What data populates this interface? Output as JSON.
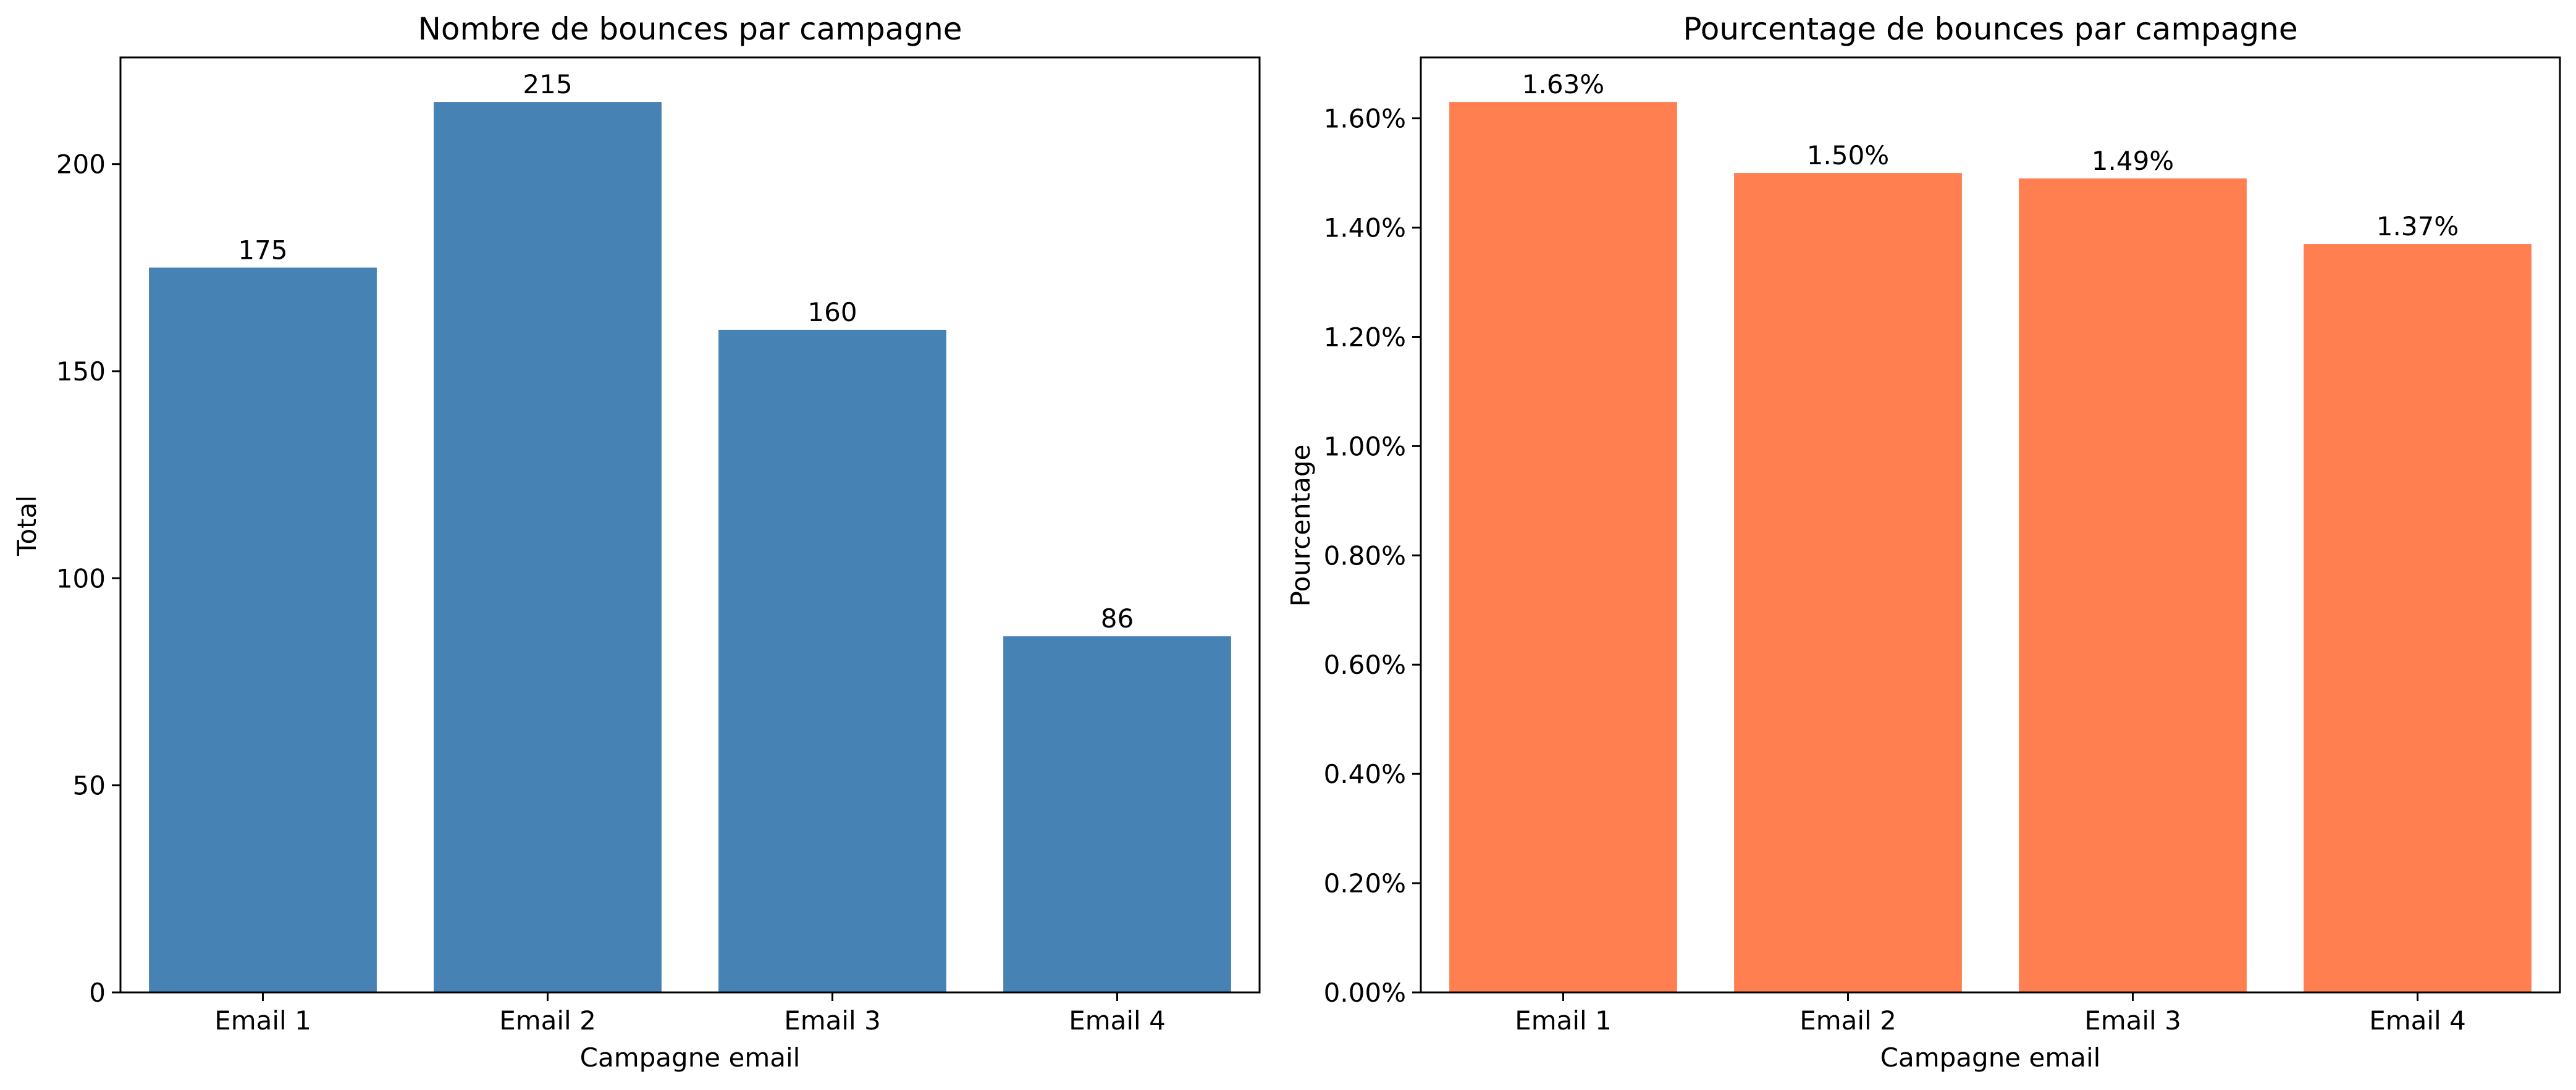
{
  "chart_data": [
    {
      "type": "bar",
      "title": "Nombre de bounces par campagne",
      "xlabel": "Campagne email",
      "ylabel": "Total",
      "categories": [
        "Email 1",
        "Email 2",
        "Email 3",
        "Email 4"
      ],
      "values": [
        175,
        215,
        160,
        86
      ],
      "value_labels": [
        "175",
        "215",
        "160",
        "86"
      ],
      "ylim": [
        0,
        225.75
      ],
      "yticks": [
        0,
        50,
        100,
        150,
        200
      ],
      "ytick_labels": [
        "0",
        "50",
        "100",
        "150",
        "200"
      ],
      "color": "#4682B4",
      "grid": false,
      "legend": "none"
    },
    {
      "type": "bar",
      "title": "Pourcentage de bounces par campagne",
      "xlabel": "Campagne email",
      "ylabel": "Pourcentage",
      "categories": [
        "Email 1",
        "Email 2",
        "Email 3",
        "Email 4"
      ],
      "values": [
        1.63,
        1.5,
        1.49,
        1.37
      ],
      "value_labels": [
        "1.63%",
        "1.50%",
        "1.49%",
        "1.37%"
      ],
      "ylim": [
        0,
        1.7115
      ],
      "yticks": [
        0,
        0.2,
        0.4,
        0.6,
        0.8,
        1.0,
        1.2,
        1.4,
        1.6
      ],
      "ytick_labels": [
        "0.00%",
        "0.20%",
        "0.40%",
        "0.60%",
        "0.80%",
        "1.00%",
        "1.20%",
        "1.40%",
        "1.60%"
      ],
      "color": "#FF7F50",
      "grid": false,
      "legend": "none"
    }
  ]
}
